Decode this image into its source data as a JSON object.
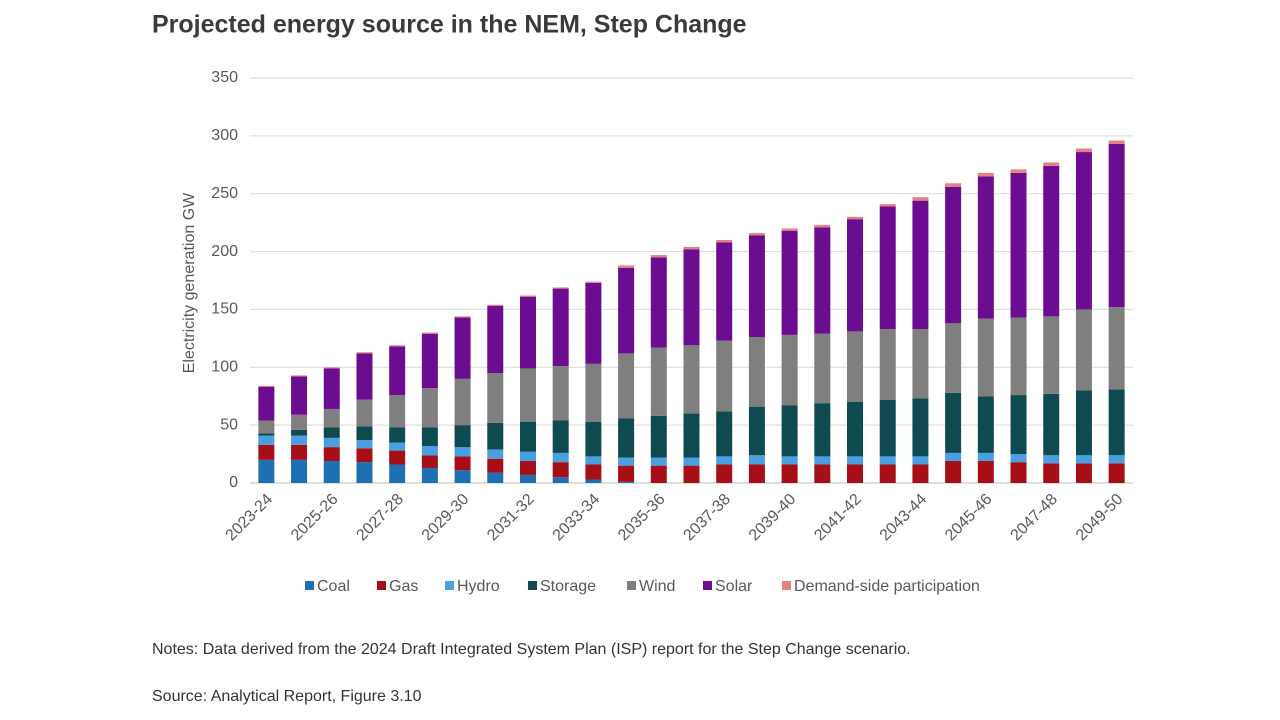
{
  "chart_data": {
    "type": "stacked-bar",
    "title": "Projected energy source in the NEM, Step Change",
    "y_label": "Electricity generation GW",
    "categories": [
      "2023-24",
      null,
      "2025-26",
      null,
      "2027-28",
      null,
      "2029-30",
      null,
      "2031-32",
      null,
      "2033-34",
      null,
      "2035-36",
      null,
      "2037-38",
      null,
      "2039-40",
      null,
      "2041-42",
      null,
      "2043-44",
      null,
      "2045-46",
      null,
      "2047-48",
      null,
      "2049-50"
    ],
    "series": [
      {
        "name": "Coal",
        "color": "#1f6fb4",
        "values": [
          20,
          20,
          19,
          18,
          16,
          13,
          11,
          9,
          7,
          5,
          3,
          1,
          0,
          0,
          0,
          0,
          0,
          0,
          0,
          0,
          0,
          0,
          0,
          0,
          0,
          0,
          0
        ]
      },
      {
        "name": "Gas",
        "color": "#a50f15",
        "values": [
          13,
          13,
          12,
          12,
          12,
          11,
          12,
          12,
          12,
          13,
          13,
          14,
          15,
          15,
          16,
          16,
          16,
          16,
          16,
          16,
          16,
          19,
          19,
          18,
          17,
          17,
          17
        ]
      },
      {
        "name": "Hydro",
        "color": "#4a9fe0",
        "values": [
          8,
          8,
          8,
          7,
          7,
          8,
          8,
          8,
          8,
          8,
          7,
          7,
          7,
          7,
          7,
          8,
          7,
          7,
          7,
          7,
          7,
          7,
          7,
          7,
          7,
          7,
          7
        ]
      },
      {
        "name": "Storage",
        "color": "#0e4a4f",
        "values": [
          2,
          5,
          9,
          12,
          13,
          16,
          19,
          23,
          26,
          28,
          30,
          34,
          36,
          38,
          39,
          42,
          44,
          46,
          47,
          49,
          50,
          52,
          49,
          51,
          53,
          56,
          57
        ]
      },
      {
        "name": "Wind",
        "color": "#7f7f7f",
        "values": [
          11,
          13,
          16,
          23,
          28,
          34,
          40,
          43,
          46,
          47,
          50,
          56,
          59,
          59,
          61,
          60,
          61,
          60,
          61,
          61,
          60,
          60,
          67,
          67,
          67,
          70,
          71
        ]
      },
      {
        "name": "Solar",
        "color": "#6a0d91",
        "values": [
          29,
          33,
          35,
          40,
          42,
          47,
          53,
          58,
          62,
          67,
          70,
          74,
          78,
          83,
          85,
          88,
          90,
          92,
          97,
          106,
          111,
          118,
          123,
          125,
          130,
          136,
          141
        ]
      },
      {
        "name": "Demand-side participation",
        "color": "#e58080",
        "values": [
          1,
          1,
          1,
          1,
          1,
          1,
          1,
          1,
          1,
          1,
          1,
          2,
          2,
          2,
          2,
          2,
          2,
          2,
          2,
          2,
          3,
          3,
          3,
          3,
          3,
          3,
          3
        ]
      }
    ],
    "ylim": [
      0,
      350
    ],
    "yticks": [
      0,
      50,
      100,
      150,
      200,
      250,
      300,
      350
    ],
    "grid": true,
    "legend": "bottom"
  },
  "notes": "Notes: Data derived from the 2024 Draft Integrated System Plan (ISP) report for the Step Change scenario.",
  "source": "Source: Analytical Report, Figure 3.10"
}
